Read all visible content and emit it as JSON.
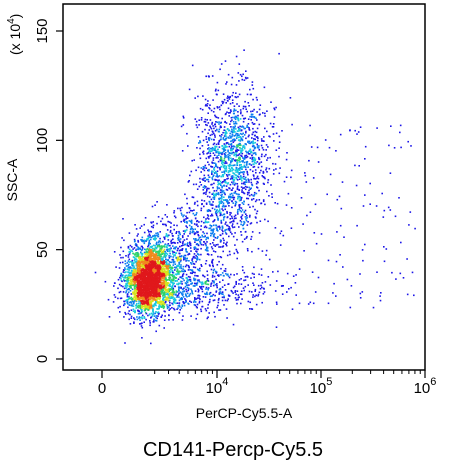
{
  "chart_data": {
    "type": "scatter",
    "style": "flow-cytometry density dot plot",
    "x_axis": {
      "label": "PerCP-Cy5.5-A",
      "scale": "biexponential (linear near 0, log above 10^3)",
      "ticks": [
        {
          "value": 0,
          "base": "0",
          "exp": ""
        },
        {
          "value": 10000,
          "base": "10",
          "exp": "4"
        },
        {
          "value": 100000,
          "base": "10",
          "exp": "5"
        },
        {
          "value": 1000000,
          "base": "10",
          "exp": "6"
        }
      ]
    },
    "y_axis": {
      "label": "SSC-A",
      "multiplier": {
        "base": "(x 10",
        "exp": "4",
        "close": ")"
      },
      "scale": "linear",
      "ylim": [
        -5,
        163
      ],
      "ticks": [
        {
          "value": 0,
          "text": "0"
        },
        {
          "value": 50,
          "text": "50"
        },
        {
          "value": 100,
          "text": "100"
        },
        {
          "value": 150,
          "text": "150"
        }
      ]
    },
    "caption": "CD141-Percp-Cy5.5",
    "populations": [
      {
        "center_x": 1500,
        "center_y": 37,
        "spread_x": "narrow",
        "spread_y": 9,
        "density": "very high (peak red/orange)"
      },
      {
        "center_x": 14000,
        "center_y": 93,
        "spread_x": "moderate",
        "spread_y": 14,
        "density": "medium (blue)"
      },
      {
        "from_x": 3000,
        "to_x": 800000,
        "from_y": 25,
        "to_y": 130,
        "density": "sparse scattered events"
      }
    ],
    "color_scale": [
      "#1c16e8",
      "#0a7cf0",
      "#19c9e0",
      "#2fd36a",
      "#d7e21c",
      "#f08a1c",
      "#e0181c"
    ]
  }
}
